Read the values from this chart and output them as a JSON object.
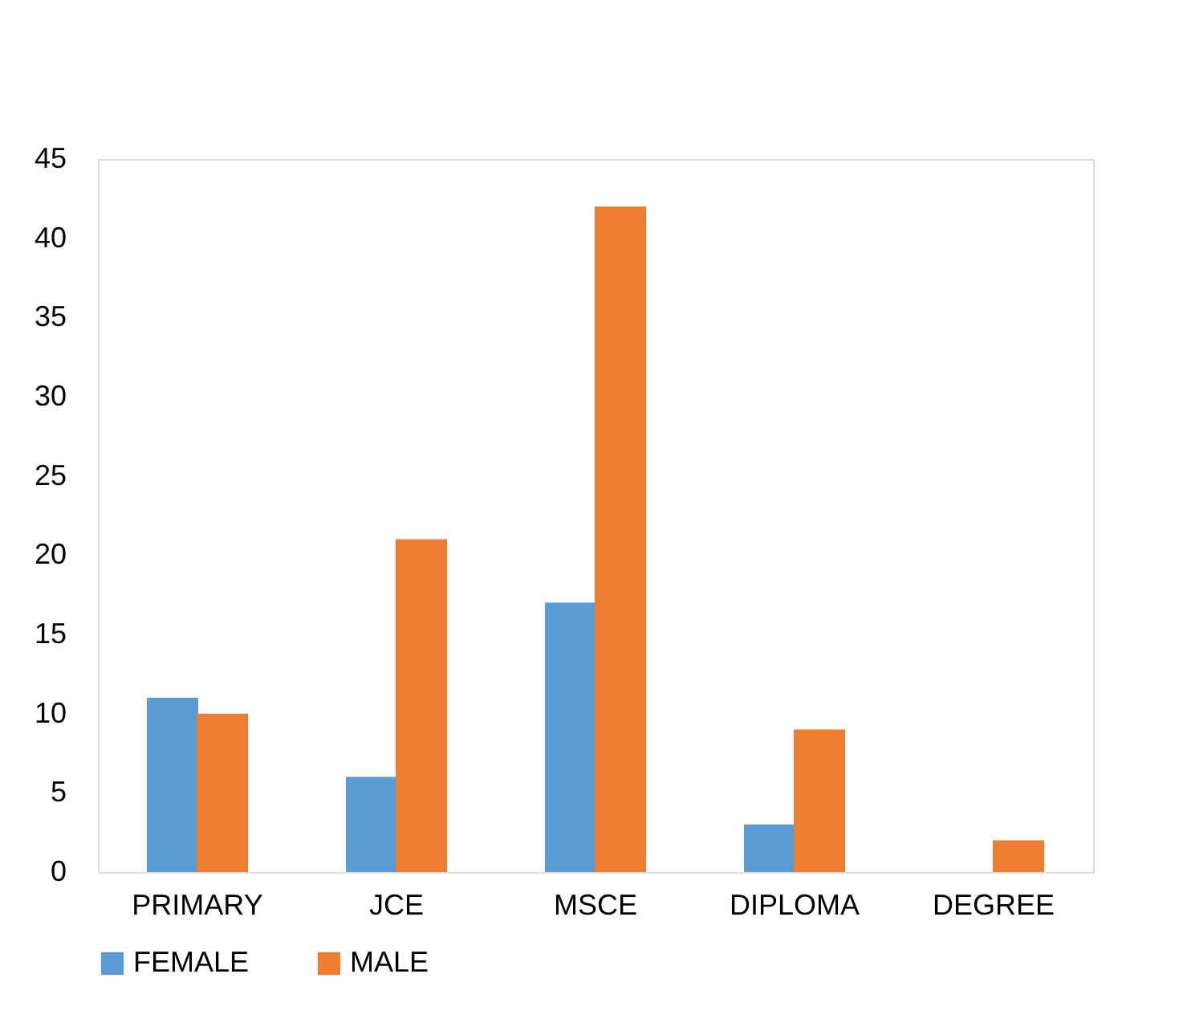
{
  "chart_data": {
    "type": "bar",
    "categories": [
      "PRIMARY",
      "JCE",
      "MSCE",
      "DIPLOMA",
      "DEGREE"
    ],
    "series": [
      {
        "name": "FEMALE",
        "color": "#5b9bd5",
        "values": [
          11,
          6,
          17,
          3,
          0
        ]
      },
      {
        "name": "MALE",
        "color": "#ed7d31",
        "values": [
          10,
          21,
          42,
          9,
          2
        ]
      }
    ],
    "ylim": [
      0,
      45
    ],
    "yticks": [
      0,
      5,
      10,
      15,
      20,
      25,
      30,
      35,
      40,
      45
    ],
    "grid": false,
    "legend": "bottom"
  }
}
